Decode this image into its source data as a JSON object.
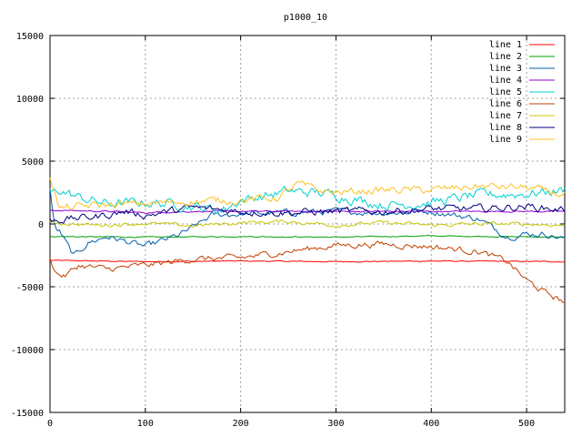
{
  "chart_data": {
    "type": "line",
    "title": "p1000_10",
    "xlabel": "",
    "ylabel": "",
    "xlim": [
      0,
      540
    ],
    "ylim": [
      -15000,
      15000
    ],
    "x_ticks": [
      0,
      100,
      200,
      300,
      400,
      500
    ],
    "y_ticks": [
      -15000,
      -10000,
      -5000,
      0,
      5000,
      10000,
      15000
    ],
    "grid": true,
    "legend_position": "top-right",
    "series": [
      {
        "name": "line 1",
        "color": "#ff0000",
        "noise": 40,
        "points": [
          [
            0,
            -2900
          ],
          [
            100,
            -3000
          ],
          [
            200,
            -2950
          ],
          [
            300,
            -3000
          ],
          [
            400,
            -2950
          ],
          [
            540,
            -3000
          ]
        ]
      },
      {
        "name": "line 2",
        "color": "#00a000",
        "noise": 40,
        "points": [
          [
            0,
            -1000
          ],
          [
            100,
            -1050
          ],
          [
            200,
            -1000
          ],
          [
            300,
            -1050
          ],
          [
            400,
            -950
          ],
          [
            540,
            -1050
          ]
        ]
      },
      {
        "name": "line 3",
        "color": "#0060ad",
        "noise": 250,
        "points": [
          [
            0,
            2800
          ],
          [
            5,
            -400
          ],
          [
            10,
            -600
          ],
          [
            25,
            -2600
          ],
          [
            40,
            -1500
          ],
          [
            60,
            -1000
          ],
          [
            80,
            -1400
          ],
          [
            100,
            -1800
          ],
          [
            120,
            -1300
          ],
          [
            135,
            -900
          ],
          [
            150,
            -300
          ],
          [
            170,
            700
          ],
          [
            200,
            800
          ],
          [
            250,
            900
          ],
          [
            300,
            1000
          ],
          [
            350,
            900
          ],
          [
            400,
            1000
          ],
          [
            450,
            400
          ],
          [
            480,
            -1000
          ],
          [
            500,
            -800
          ],
          [
            520,
            -800
          ],
          [
            540,
            -1200
          ]
        ]
      },
      {
        "name": "line 4",
        "color": "#9400d3",
        "noise": 60,
        "points": [
          [
            0,
            1100
          ],
          [
            60,
            1000
          ],
          [
            100,
            900
          ],
          [
            150,
            1000
          ],
          [
            200,
            1000
          ],
          [
            300,
            1000
          ],
          [
            400,
            1000
          ],
          [
            500,
            1000
          ],
          [
            540,
            1000
          ]
        ]
      },
      {
        "name": "line 5",
        "color": "#00d0d0",
        "noise": 400,
        "points": [
          [
            0,
            2400
          ],
          [
            10,
            2700
          ],
          [
            30,
            2100
          ],
          [
            60,
            1600
          ],
          [
            100,
            1700
          ],
          [
            130,
            1600
          ],
          [
            160,
            1300
          ],
          [
            180,
            1100
          ],
          [
            200,
            1900
          ],
          [
            230,
            2300
          ],
          [
            250,
            2600
          ],
          [
            280,
            2500
          ],
          [
            300,
            2300
          ],
          [
            350,
            1500
          ],
          [
            400,
            1700
          ],
          [
            450,
            2300
          ],
          [
            500,
            2400
          ],
          [
            540,
            2700
          ]
        ]
      },
      {
        "name": "line 6",
        "color": "#c04000",
        "noise": 250,
        "points": [
          [
            0,
            -2500
          ],
          [
            5,
            -3800
          ],
          [
            15,
            -4200
          ],
          [
            30,
            -3300
          ],
          [
            60,
            -3600
          ],
          [
            100,
            -3300
          ],
          [
            150,
            -2800
          ],
          [
            200,
            -2700
          ],
          [
            250,
            -2200
          ],
          [
            300,
            -1700
          ],
          [
            350,
            -1600
          ],
          [
            400,
            -1800
          ],
          [
            450,
            -2200
          ],
          [
            480,
            -3000
          ],
          [
            500,
            -4500
          ],
          [
            520,
            -5500
          ],
          [
            540,
            -6200
          ]
        ]
      },
      {
        "name": "line 7",
        "color": "#c8c800",
        "noise": 150,
        "points": [
          [
            0,
            100
          ],
          [
            50,
            -100
          ],
          [
            100,
            50
          ],
          [
            150,
            -150
          ],
          [
            200,
            100
          ],
          [
            250,
            200
          ],
          [
            300,
            -100
          ],
          [
            350,
            100
          ],
          [
            400,
            -100
          ],
          [
            450,
            0
          ],
          [
            500,
            0
          ],
          [
            540,
            -100
          ]
        ]
      },
      {
        "name": "line 8",
        "color": "#000080",
        "noise": 300,
        "points": [
          [
            0,
            300
          ],
          [
            20,
            400
          ],
          [
            50,
            600
          ],
          [
            80,
            1000
          ],
          [
            100,
            700
          ],
          [
            150,
            1300
          ],
          [
            200,
            1000
          ],
          [
            250,
            900
          ],
          [
            300,
            1000
          ],
          [
            350,
            1000
          ],
          [
            400,
            1200
          ],
          [
            450,
            1200
          ],
          [
            500,
            1400
          ],
          [
            540,
            1100
          ]
        ]
      },
      {
        "name": "line 9",
        "color": "#ffc020",
        "noise": 300,
        "points": [
          [
            0,
            3800
          ],
          [
            10,
            1200
          ],
          [
            50,
            1500
          ],
          [
            100,
            1600
          ],
          [
            150,
            1800
          ],
          [
            200,
            1900
          ],
          [
            240,
            2100
          ],
          [
            260,
            3200
          ],
          [
            280,
            2700
          ],
          [
            300,
            2500
          ],
          [
            350,
            2700
          ],
          [
            400,
            2700
          ],
          [
            450,
            3000
          ],
          [
            500,
            2900
          ],
          [
            540,
            2300
          ]
        ]
      }
    ]
  }
}
